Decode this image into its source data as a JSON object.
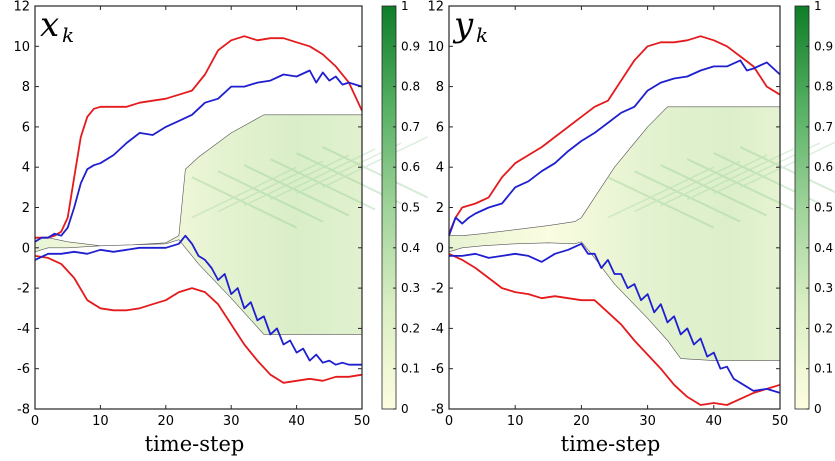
{
  "chart_data": [
    {
      "type": "line",
      "title": "x",
      "title_subscript": "k",
      "xlabel": "time-step",
      "xlim": [
        0,
        50
      ],
      "ylim": [
        -8,
        12
      ],
      "xticks": [
        0,
        10,
        20,
        30,
        40,
        50
      ],
      "yticks": [
        -8,
        -6,
        -4,
        -2,
        0,
        2,
        4,
        6,
        8,
        10,
        12
      ],
      "colorbar": {
        "ticks": [
          0,
          0.1,
          0.2,
          0.3,
          0.4,
          0.5,
          0.6,
          0.7,
          0.8,
          0.9,
          1
        ],
        "low_color": "#fdfde0",
        "high_color": "#0e7d28"
      },
      "heatmap_envelope": {
        "x": [
          0,
          2,
          5,
          10,
          15,
          20,
          22,
          23,
          25,
          30,
          35,
          40,
          45,
          50
        ],
        "upper": [
          0.5,
          0.5,
          0.3,
          0.1,
          0.15,
          0.25,
          0.6,
          3.9,
          4.5,
          5.7,
          6.6,
          6.6,
          6.6,
          6.6
        ],
        "lower": [
          -0.2,
          0.0,
          0.0,
          0.1,
          0.15,
          0.2,
          0.4,
          0.0,
          -0.8,
          -2.5,
          -4.3,
          -4.3,
          -4.3,
          -4.3
        ]
      },
      "series": [
        {
          "color": "#e41a1c",
          "x": [
            0,
            1,
            2,
            3,
            4,
            5,
            6,
            7,
            8,
            9,
            10,
            12,
            14,
            16,
            18,
            20,
            22,
            24,
            26,
            28,
            30,
            32,
            34,
            36,
            38,
            40,
            42,
            44,
            46,
            48,
            50
          ],
          "values": [
            0.5,
            0.5,
            0.5,
            0.6,
            0.8,
            1.5,
            3.5,
            5.5,
            6.5,
            6.9,
            7.0,
            7.0,
            7.0,
            7.2,
            7.3,
            7.4,
            7.6,
            7.8,
            8.6,
            9.8,
            10.3,
            10.5,
            10.3,
            10.4,
            10.4,
            10.2,
            10.0,
            9.6,
            9.0,
            8.2,
            6.8
          ]
        },
        {
          "color": "#e41a1c",
          "x": [
            0,
            2,
            4,
            6,
            8,
            10,
            12,
            14,
            16,
            18,
            20,
            22,
            24,
            26,
            28,
            30,
            32,
            34,
            36,
            38,
            40,
            42,
            44,
            46,
            48,
            50
          ],
          "values": [
            -0.4,
            -0.5,
            -0.8,
            -1.5,
            -2.6,
            -3.0,
            -3.1,
            -3.1,
            -3.0,
            -2.8,
            -2.6,
            -2.2,
            -2.0,
            -2.2,
            -2.8,
            -3.8,
            -4.8,
            -5.6,
            -6.3,
            -6.7,
            -6.6,
            -6.5,
            -6.6,
            -6.4,
            -6.4,
            -6.3
          ]
        },
        {
          "color": "#1f1fd0",
          "x": [
            0,
            1,
            2,
            3,
            4,
            5,
            6,
            7,
            8,
            9,
            10,
            12,
            14,
            16,
            18,
            20,
            22,
            24,
            26,
            28,
            30,
            32,
            34,
            36,
            38,
            40,
            42,
            43,
            44,
            45,
            46,
            47,
            48,
            50
          ],
          "values": [
            0.3,
            0.5,
            0.5,
            0.7,
            0.6,
            1.0,
            2.0,
            3.2,
            3.9,
            4.1,
            4.2,
            4.6,
            5.2,
            5.7,
            5.6,
            6.0,
            6.3,
            6.6,
            7.2,
            7.4,
            8.0,
            8.0,
            8.2,
            8.3,
            8.6,
            8.5,
            8.8,
            8.2,
            8.7,
            8.3,
            8.5,
            8.1,
            8.2,
            8.0
          ]
        },
        {
          "color": "#1f1fd0",
          "x": [
            0,
            2,
            4,
            6,
            8,
            10,
            12,
            14,
            16,
            18,
            20,
            22,
            23,
            24,
            25,
            26,
            27,
            28,
            29,
            30,
            31,
            32,
            33,
            34,
            35,
            36,
            37,
            38,
            39,
            40,
            41,
            42,
            43,
            44,
            45,
            46,
            47,
            48,
            50
          ],
          "values": [
            -0.6,
            -0.3,
            -0.3,
            -0.2,
            -0.3,
            -0.1,
            -0.2,
            -0.1,
            0.0,
            0.0,
            0.0,
            0.2,
            0.6,
            0.2,
            -0.4,
            -0.6,
            -1.0,
            -1.6,
            -1.3,
            -2.3,
            -2.0,
            -3.0,
            -2.7,
            -3.6,
            -3.4,
            -4.3,
            -4.0,
            -4.8,
            -4.6,
            -5.2,
            -5.0,
            -5.6,
            -5.3,
            -5.7,
            -5.6,
            -5.8,
            -5.7,
            -5.8,
            -5.8
          ]
        }
      ]
    },
    {
      "type": "line",
      "title": "y",
      "title_subscript": "k",
      "xlabel": "time-step",
      "xlim": [
        0,
        50
      ],
      "ylim": [
        -8,
        12
      ],
      "xticks": [
        0,
        10,
        20,
        30,
        40,
        50
      ],
      "yticks": [
        -8,
        -6,
        -4,
        -2,
        0,
        2,
        4,
        6,
        8,
        10,
        12
      ],
      "colorbar": {
        "ticks": [
          0,
          0.1,
          0.2,
          0.3,
          0.4,
          0.5,
          0.6,
          0.7,
          0.8,
          0.9,
          1
        ],
        "low_color": "#fdfde0",
        "high_color": "#0e7d28"
      },
      "heatmap_envelope": {
        "x": [
          0,
          2,
          5,
          10,
          15,
          19,
          20,
          22,
          25,
          30,
          33,
          35,
          40,
          45,
          50
        ],
        "upper": [
          0.6,
          0.6,
          0.7,
          0.9,
          1.1,
          1.3,
          1.5,
          2.5,
          4.0,
          6.0,
          7.0,
          7.0,
          7.0,
          7.0,
          7.0
        ],
        "lower": [
          -0.2,
          0.0,
          0.1,
          0.2,
          0.25,
          0.2,
          0.3,
          -0.5,
          -1.8,
          -3.5,
          -4.6,
          -5.5,
          -5.6,
          -5.6,
          -5.6
        ]
      },
      "series": [
        {
          "color": "#e41a1c",
          "x": [
            0,
            1,
            2,
            4,
            6,
            8,
            10,
            12,
            14,
            16,
            18,
            20,
            22,
            24,
            26,
            28,
            30,
            32,
            34,
            36,
            38,
            40,
            42,
            44,
            46,
            48,
            50
          ],
          "values": [
            0.7,
            1.5,
            2.0,
            2.2,
            2.5,
            3.5,
            4.2,
            4.6,
            5.0,
            5.5,
            6.0,
            6.5,
            7.0,
            7.3,
            8.3,
            9.3,
            10.0,
            10.2,
            10.2,
            10.3,
            10.5,
            10.3,
            10.0,
            9.5,
            9.0,
            8.0,
            7.6
          ]
        },
        {
          "color": "#e41a1c",
          "x": [
            0,
            2,
            4,
            6,
            8,
            10,
            12,
            14,
            16,
            18,
            20,
            22,
            24,
            26,
            28,
            30,
            32,
            34,
            36,
            38,
            40,
            42,
            44,
            46,
            48,
            50
          ],
          "values": [
            -0.3,
            -0.6,
            -1.0,
            -1.5,
            -2.0,
            -2.2,
            -2.3,
            -2.5,
            -2.4,
            -2.5,
            -2.6,
            -2.6,
            -3.2,
            -3.8,
            -4.6,
            -5.3,
            -6.0,
            -6.8,
            -7.4,
            -7.8,
            -7.7,
            -7.8,
            -7.5,
            -7.2,
            -7.0,
            -6.8
          ]
        },
        {
          "color": "#1f1fd0",
          "x": [
            0,
            1,
            2,
            3,
            4,
            6,
            8,
            10,
            12,
            14,
            16,
            18,
            20,
            22,
            24,
            26,
            28,
            30,
            32,
            34,
            36,
            38,
            40,
            42,
            44,
            45,
            46,
            48,
            50
          ],
          "values": [
            0.6,
            1.5,
            1.2,
            1.5,
            1.7,
            2.0,
            2.2,
            3.0,
            3.3,
            3.8,
            4.2,
            4.8,
            5.3,
            5.7,
            6.2,
            6.7,
            7.0,
            7.8,
            8.2,
            8.4,
            8.5,
            8.8,
            9.0,
            9.0,
            9.3,
            8.8,
            8.9,
            9.2,
            8.6
          ]
        },
        {
          "color": "#1f1fd0",
          "x": [
            0,
            2,
            4,
            6,
            8,
            10,
            12,
            14,
            16,
            18,
            20,
            21,
            22,
            23,
            24,
            25,
            26,
            27,
            28,
            29,
            30,
            31,
            32,
            33,
            34,
            35,
            36,
            37,
            38,
            39,
            40,
            41,
            42,
            43,
            44,
            46,
            48,
            50
          ],
          "values": [
            -0.4,
            -0.4,
            -0.3,
            -0.5,
            -0.4,
            -0.3,
            -0.4,
            -0.7,
            -0.3,
            -0.1,
            0.2,
            -0.3,
            -0.3,
            -1.0,
            -0.6,
            -1.3,
            -1.3,
            -2.0,
            -1.8,
            -2.6,
            -2.3,
            -3.2,
            -2.8,
            -3.7,
            -3.4,
            -4.3,
            -4.0,
            -4.8,
            -4.5,
            -5.4,
            -5.2,
            -6.0,
            -5.9,
            -6.5,
            -6.7,
            -7.1,
            -7.0,
            -7.2
          ]
        }
      ]
    }
  ]
}
